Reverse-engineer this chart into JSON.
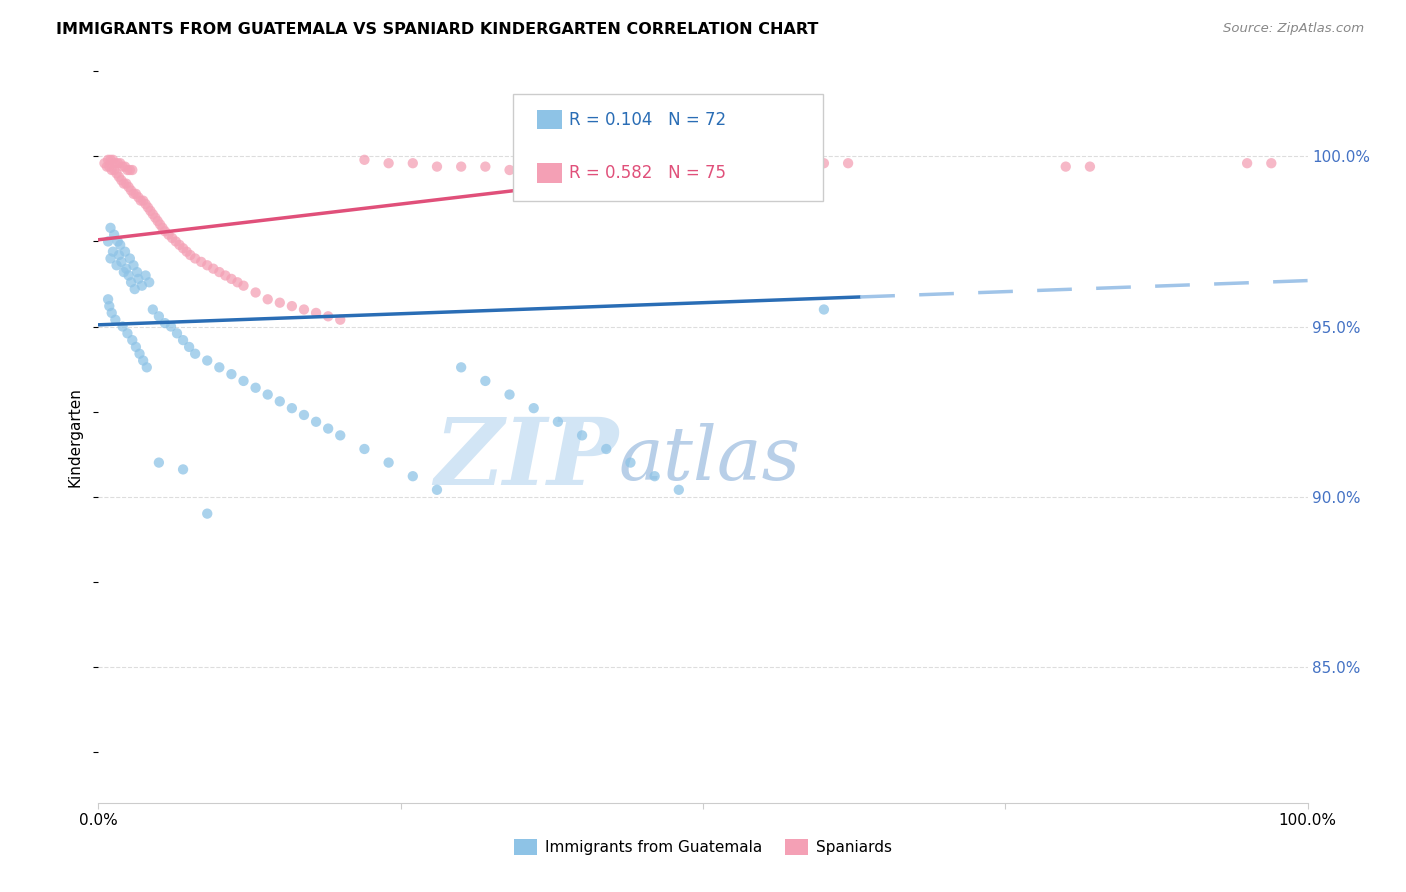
{
  "title": "IMMIGRANTS FROM GUATEMALA VS SPANIARD KINDERGARTEN CORRELATION CHART",
  "source": "Source: ZipAtlas.com",
  "ylabel": "Kindergarten",
  "y_tick_labels": [
    "85.0%",
    "90.0%",
    "95.0%",
    "100.0%"
  ],
  "y_tick_values": [
    0.85,
    0.9,
    0.95,
    1.0
  ],
  "x_range": [
    0.0,
    1.0
  ],
  "y_range": [
    0.81,
    1.025
  ],
  "legend_r1": "R = 0.104",
  "legend_n1": "N = 72",
  "legend_r2": "R = 0.582",
  "legend_n2": "N = 75",
  "color_blue": "#8ec3e6",
  "color_pink": "#f4a0b5",
  "trendline_blue_solid_color": "#2a6db5",
  "trendline_blue_dashed_color": "#a0c4e8",
  "trendline_pink_color": "#e0507a",
  "watermark_zip": "ZIP",
  "watermark_atlas": "atlas",
  "watermark_color_zip": "#ccddf0",
  "watermark_color_atlas": "#b8d0e8",
  "blue_x": [
    0.008,
    0.01,
    0.012,
    0.015,
    0.017,
    0.019,
    0.021,
    0.023,
    0.025,
    0.027,
    0.03,
    0.033,
    0.036,
    0.039,
    0.042,
    0.01,
    0.013,
    0.016,
    0.018,
    0.022,
    0.026,
    0.029,
    0.032,
    0.008,
    0.009,
    0.011,
    0.014,
    0.02,
    0.024,
    0.028,
    0.031,
    0.034,
    0.037,
    0.04,
    0.045,
    0.05,
    0.055,
    0.06,
    0.065,
    0.07,
    0.075,
    0.08,
    0.09,
    0.1,
    0.11,
    0.12,
    0.13,
    0.14,
    0.15,
    0.16,
    0.17,
    0.18,
    0.19,
    0.2,
    0.22,
    0.24,
    0.26,
    0.28,
    0.3,
    0.32,
    0.34,
    0.36,
    0.38,
    0.4,
    0.42,
    0.44,
    0.46,
    0.48,
    0.05,
    0.07,
    0.09,
    0.6
  ],
  "blue_y": [
    0.975,
    0.97,
    0.972,
    0.968,
    0.971,
    0.969,
    0.966,
    0.967,
    0.965,
    0.963,
    0.961,
    0.964,
    0.962,
    0.965,
    0.963,
    0.979,
    0.977,
    0.975,
    0.974,
    0.972,
    0.97,
    0.968,
    0.966,
    0.958,
    0.956,
    0.954,
    0.952,
    0.95,
    0.948,
    0.946,
    0.944,
    0.942,
    0.94,
    0.938,
    0.955,
    0.953,
    0.951,
    0.95,
    0.948,
    0.946,
    0.944,
    0.942,
    0.94,
    0.938,
    0.936,
    0.934,
    0.932,
    0.93,
    0.928,
    0.926,
    0.924,
    0.922,
    0.92,
    0.918,
    0.914,
    0.91,
    0.906,
    0.902,
    0.938,
    0.934,
    0.93,
    0.926,
    0.922,
    0.918,
    0.914,
    0.91,
    0.906,
    0.902,
    0.91,
    0.908,
    0.895,
    0.955
  ],
  "pink_x": [
    0.005,
    0.007,
    0.009,
    0.011,
    0.013,
    0.015,
    0.017,
    0.019,
    0.021,
    0.023,
    0.025,
    0.027,
    0.029,
    0.031,
    0.033,
    0.035,
    0.037,
    0.039,
    0.041,
    0.043,
    0.045,
    0.047,
    0.049,
    0.051,
    0.053,
    0.055,
    0.058,
    0.061,
    0.064,
    0.067,
    0.07,
    0.073,
    0.076,
    0.08,
    0.085,
    0.09,
    0.095,
    0.1,
    0.105,
    0.11,
    0.115,
    0.12,
    0.13,
    0.14,
    0.15,
    0.16,
    0.17,
    0.18,
    0.19,
    0.2,
    0.22,
    0.24,
    0.26,
    0.28,
    0.3,
    0.32,
    0.34,
    0.36,
    0.008,
    0.01,
    0.012,
    0.014,
    0.016,
    0.018,
    0.02,
    0.022,
    0.024,
    0.026,
    0.028,
    0.6,
    0.62,
    0.8,
    0.82,
    0.95,
    0.97
  ],
  "pink_y": [
    0.998,
    0.997,
    0.997,
    0.996,
    0.996,
    0.995,
    0.994,
    0.993,
    0.992,
    0.992,
    0.991,
    0.99,
    0.989,
    0.989,
    0.988,
    0.987,
    0.987,
    0.986,
    0.985,
    0.984,
    0.983,
    0.982,
    0.981,
    0.98,
    0.979,
    0.978,
    0.977,
    0.976,
    0.975,
    0.974,
    0.973,
    0.972,
    0.971,
    0.97,
    0.969,
    0.968,
    0.967,
    0.966,
    0.965,
    0.964,
    0.963,
    0.962,
    0.96,
    0.958,
    0.957,
    0.956,
    0.955,
    0.954,
    0.953,
    0.952,
    0.999,
    0.998,
    0.998,
    0.997,
    0.997,
    0.997,
    0.996,
    0.996,
    0.999,
    0.999,
    0.999,
    0.998,
    0.998,
    0.998,
    0.997,
    0.997,
    0.996,
    0.996,
    0.996,
    0.998,
    0.998,
    0.997,
    0.997,
    0.998,
    0.998
  ],
  "blue_trend_x0": 0.0,
  "blue_trend_x_solid_end": 0.63,
  "blue_trend_x_dashed_end": 1.0,
  "blue_trend_y0": 0.9505,
  "blue_trend_slope": 0.013,
  "pink_trend_x0": 0.0,
  "pink_trend_x_end": 0.4,
  "pink_trend_y0": 0.9755,
  "pink_trend_slope": 0.042,
  "grid_color": "#dddddd",
  "spine_color": "#cccccc",
  "right_tick_color": "#4472c4"
}
